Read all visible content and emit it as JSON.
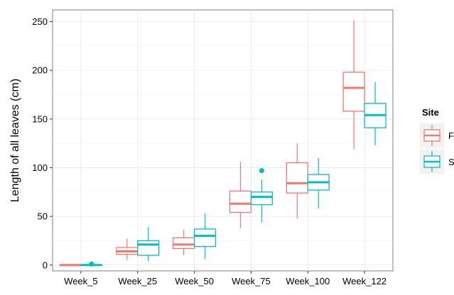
{
  "chart_data": {
    "type": "boxplot",
    "title": "",
    "xlabel": "",
    "ylabel": "Length of all leaves (cm)",
    "categories": [
      "Week_5",
      "Week_25",
      "Week_50",
      "Week_75",
      "Week_100",
      "Week_122"
    ],
    "y_ticks": [
      0,
      50,
      100,
      150,
      200,
      250
    ],
    "ylim": [
      -6,
      262
    ],
    "grid": true,
    "legend": {
      "title": "Site",
      "position": "right",
      "labels": [
        "F",
        "S"
      ]
    },
    "series": [
      {
        "name": "F",
        "color": "#F8766D",
        "boxes": [
          {
            "min": 0,
            "q1": 0,
            "median": 0,
            "q3": 0,
            "max": 0,
            "outliers": []
          },
          {
            "min": 5,
            "q1": 11,
            "median": 14,
            "q3": 18,
            "max": 27,
            "outliers": []
          },
          {
            "min": 10,
            "q1": 17,
            "median": 21,
            "q3": 28,
            "max": 36,
            "outliers": []
          },
          {
            "min": 38,
            "q1": 54,
            "median": 63,
            "q3": 76,
            "max": 106,
            "outliers": []
          },
          {
            "min": 48,
            "q1": 74,
            "median": 84,
            "q3": 105,
            "max": 125,
            "outliers": []
          },
          {
            "min": 119,
            "q1": 158,
            "median": 182,
            "q3": 198,
            "max": 251,
            "outliers": []
          }
        ]
      },
      {
        "name": "S",
        "color": "#00BFC4",
        "boxes": [
          {
            "min": 0,
            "q1": 0,
            "median": 0,
            "q3": 0,
            "max": 0,
            "outliers": [
              1
            ]
          },
          {
            "min": 4,
            "q1": 10,
            "median": 21,
            "q3": 25,
            "max": 39,
            "outliers": []
          },
          {
            "min": 6,
            "q1": 19,
            "median": 30,
            "q3": 37,
            "max": 53,
            "outliers": []
          },
          {
            "min": 44,
            "q1": 62,
            "median": 70,
            "q3": 75,
            "max": 88,
            "outliers": [
              97
            ]
          },
          {
            "min": 58,
            "q1": 77,
            "median": 85,
            "q3": 93,
            "max": 110,
            "outliers": []
          },
          {
            "min": 123,
            "q1": 141,
            "median": 154,
            "q3": 166,
            "max": 188,
            "outliers": []
          }
        ]
      }
    ]
  }
}
